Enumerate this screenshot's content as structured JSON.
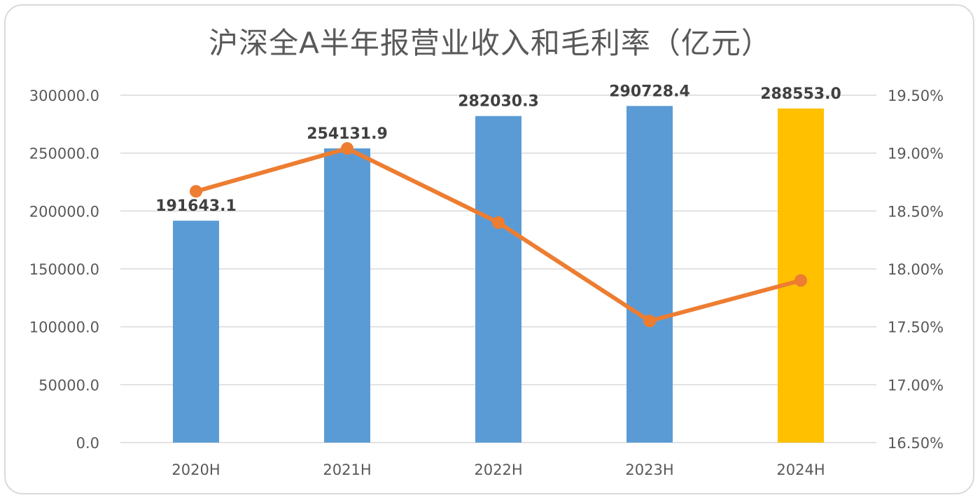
{
  "chart_data": {
    "type": "bar+line",
    "title": "沪深全A半年报营业收入和毛利率（亿元）",
    "categories": [
      "2020H",
      "2021H",
      "2022H",
      "2023H",
      "2024H"
    ],
    "bar_values": [
      191643.1,
      254131.9,
      282030.3,
      290728.4,
      288553.0
    ],
    "bar_labels": [
      "191643.1",
      "254131.9",
      "282030.3",
      "290728.4",
      "288553.0"
    ],
    "bar_colors": [
      "#5b9bd5",
      "#5b9bd5",
      "#5b9bd5",
      "#5b9bd5",
      "#ffc000"
    ],
    "line_values": [
      18.67,
      19.04,
      18.4,
      17.55,
      17.9
    ],
    "line_color": "#ed7d31",
    "left_axis": {
      "ylim": [
        0,
        300000
      ],
      "ticks": [
        0,
        50000,
        100000,
        150000,
        200000,
        250000,
        300000
      ],
      "tick_labels": [
        "0.0",
        "50000.0",
        "100000.0",
        "150000.0",
        "200000.0",
        "250000.0",
        "300000.0"
      ]
    },
    "right_axis": {
      "ylim": [
        16.5,
        19.5
      ],
      "ticks": [
        16.5,
        17.0,
        17.5,
        18.0,
        18.5,
        19.0,
        19.5
      ],
      "tick_labels": [
        "16.50%",
        "17.00%",
        "17.50%",
        "18.00%",
        "18.50%",
        "19.00%",
        "19.50%"
      ]
    },
    "grid": true,
    "legend": "none"
  }
}
